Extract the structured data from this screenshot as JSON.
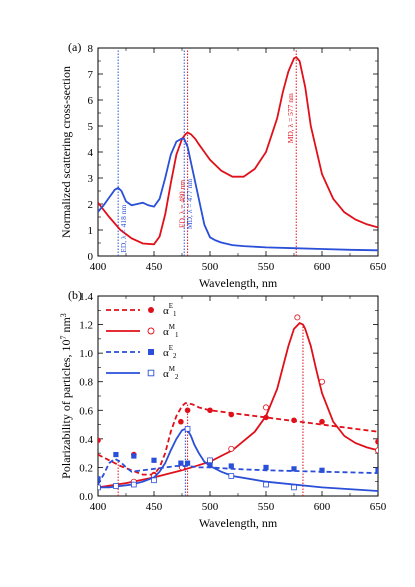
{
  "chart_data": [
    {
      "type": "line",
      "panel_label": "(a)",
      "xlabel": "Wavelength, nm",
      "ylabel": "Normalized scattering cross-section",
      "xlim": [
        400,
        650
      ],
      "ylim": [
        0,
        8
      ],
      "xticks": [
        400,
        450,
        500,
        550,
        600,
        650
      ],
      "yticks": [
        0,
        1,
        2,
        3,
        4,
        5,
        6,
        7,
        8
      ],
      "grid": false,
      "series": [
        {
          "color": "#e0101a",
          "style": "solid",
          "x": [
            400,
            410,
            420,
            430,
            440,
            450,
            455,
            460,
            465,
            470,
            475,
            478,
            480,
            483,
            487,
            490,
            495,
            500,
            510,
            520,
            530,
            540,
            550,
            560,
            565,
            570,
            575,
            577,
            580,
            585,
            590,
            600,
            610,
            620,
            630,
            640,
            650
          ],
          "y": [
            2.05,
            1.5,
            1.0,
            0.68,
            0.48,
            0.45,
            0.75,
            1.6,
            2.8,
            3.9,
            4.5,
            4.68,
            4.75,
            4.68,
            4.5,
            4.3,
            4.0,
            3.7,
            3.28,
            3.05,
            3.05,
            3.35,
            4.0,
            5.3,
            6.3,
            7.1,
            7.6,
            7.65,
            7.5,
            6.5,
            5.0,
            3.15,
            2.2,
            1.68,
            1.4,
            1.22,
            1.1
          ]
        },
        {
          "color": "#2a4fd8",
          "style": "solid",
          "x": [
            400,
            405,
            410,
            415,
            418,
            421,
            425,
            430,
            435,
            440,
            445,
            450,
            455,
            460,
            465,
            470,
            475,
            477,
            480,
            485,
            490,
            495,
            500,
            505,
            510,
            520,
            530,
            550,
            575,
            600,
            625,
            650
          ],
          "y": [
            1.7,
            1.95,
            2.25,
            2.55,
            2.62,
            2.5,
            2.1,
            1.95,
            2.0,
            2.05,
            1.95,
            1.9,
            2.2,
            3.0,
            3.9,
            4.4,
            4.52,
            4.5,
            4.2,
            3.2,
            2.2,
            1.2,
            0.72,
            0.6,
            0.52,
            0.42,
            0.38,
            0.33,
            0.3,
            0.27,
            0.24,
            0.22
          ]
        }
      ],
      "vlines": [
        {
          "x": 418,
          "color": "#2a4fd8",
          "label": "ED, λ = 418 nm"
        },
        {
          "x": 477,
          "color": "#2a4fd8",
          "label": "MD, λ = 477 nm"
        },
        {
          "x": 480,
          "color": "#e0101a",
          "label": "ED, λ = 480 nm"
        },
        {
          "x": 577,
          "color": "#e0101a",
          "label": "MD, λ = 577 nm"
        }
      ]
    },
    {
      "type": "line",
      "panel_label": "(b)",
      "xlabel": "Wavelength, nm",
      "ylabel": "Polarizability of particles, 10",
      "ylabel_sup": "7",
      "ylabel_unit": " nm",
      "ylabel_unit_sup": "3",
      "xlim": [
        400,
        650
      ],
      "ylim": [
        0,
        1.4
      ],
      "xticks": [
        400,
        450,
        500,
        550,
        600,
        650
      ],
      "yticks": [
        "0.0",
        "0.2",
        "0.4",
        "0.6",
        "0.8",
        "1.0",
        "1.2",
        "1.4"
      ],
      "grid": false,
      "legend_position": "top-left",
      "legend": [
        {
          "base": "α",
          "sup": "E",
          "sub": "1",
          "color": "#e0101a",
          "style": "dashed",
          "marker": "filled-circle"
        },
        {
          "base": "α",
          "sup": "M",
          "sub": "1",
          "color": "#e0101a",
          "style": "solid",
          "marker": "open-circle"
        },
        {
          "base": "α",
          "sup": "E",
          "sub": "2",
          "color": "#2a4fd8",
          "style": "dashed",
          "marker": "filled-square"
        },
        {
          "base": "α",
          "sup": "M",
          "sub": "2",
          "color": "#2a4fd8",
          "style": "solid",
          "marker": "open-square"
        }
      ],
      "series": [
        {
          "color": "#e0101a",
          "style": "dashed",
          "x": [
            400,
            410,
            420,
            430,
            440,
            450,
            455,
            460,
            465,
            470,
            475,
            478,
            480,
            485,
            490,
            500,
            510,
            520,
            530,
            540,
            550,
            560,
            570,
            580,
            590,
            600,
            610,
            620,
            630,
            640,
            650
          ],
          "y": [
            0.29,
            0.25,
            0.21,
            0.18,
            0.15,
            0.15,
            0.2,
            0.3,
            0.45,
            0.56,
            0.63,
            0.65,
            0.65,
            0.64,
            0.62,
            0.6,
            0.59,
            0.58,
            0.57,
            0.56,
            0.55,
            0.54,
            0.53,
            0.52,
            0.51,
            0.5,
            0.49,
            0.48,
            0.47,
            0.46,
            0.45
          ],
          "markers": {
            "type": "filled-circle",
            "x": [
              400,
              432,
              450,
              474,
              480,
              500,
              519,
              550,
              575,
              600,
              650
            ],
            "y": [
              0.39,
              0.29,
              0.15,
              0.52,
              0.6,
              0.6,
              0.57,
              0.55,
              0.53,
              0.52,
              0.38
            ]
          }
        },
        {
          "color": "#e0101a",
          "style": "solid",
          "x": [
            400,
            425,
            450,
            475,
            500,
            520,
            540,
            550,
            560,
            565,
            570,
            575,
            580,
            583,
            585,
            590,
            595,
            600,
            610,
            620,
            630,
            640,
            650
          ],
          "y": [
            0.06,
            0.09,
            0.13,
            0.18,
            0.24,
            0.32,
            0.45,
            0.56,
            0.75,
            0.9,
            1.05,
            1.17,
            1.21,
            1.2,
            1.17,
            1.05,
            0.88,
            0.72,
            0.52,
            0.42,
            0.37,
            0.34,
            0.32
          ],
          "markers": {
            "type": "open-circle",
            "x": [
              400,
              432,
              450,
              475,
              500,
              519,
              550,
              578,
              600,
              650
            ],
            "y": [
              0.06,
              0.1,
              0.14,
              0.2,
              0.24,
              0.33,
              0.62,
              1.25,
              0.8,
              0.32
            ]
          }
        },
        {
          "color": "#2a4fd8",
          "style": "dashed",
          "x": [
            400,
            405,
            410,
            415,
            420,
            425,
            430,
            440,
            450,
            460,
            470,
            480,
            490,
            500,
            520,
            550,
            575,
            600,
            625,
            650
          ],
          "y": [
            0.08,
            0.15,
            0.23,
            0.26,
            0.24,
            0.2,
            0.17,
            0.18,
            0.19,
            0.2,
            0.21,
            0.21,
            0.2,
            0.2,
            0.19,
            0.18,
            0.175,
            0.17,
            0.165,
            0.16
          ],
          "markers": {
            "type": "filled-square",
            "x": [
              400,
              416,
              432,
              450,
              474,
              480,
              500,
              519,
              550,
              575,
              600,
              650
            ],
            "y": [
              0.12,
              0.29,
              0.28,
              0.25,
              0.23,
              0.23,
              0.22,
              0.21,
              0.2,
              0.19,
              0.18,
              0.18
            ]
          }
        },
        {
          "color": "#2a4fd8",
          "style": "solid",
          "x": [
            400,
            410,
            420,
            430,
            440,
            450,
            455,
            460,
            465,
            470,
            475,
            478,
            480,
            483,
            486,
            490,
            495,
            500,
            510,
            520,
            550,
            600,
            650
          ],
          "y": [
            0.06,
            0.06,
            0.07,
            0.08,
            0.1,
            0.13,
            0.17,
            0.23,
            0.32,
            0.4,
            0.46,
            0.47,
            0.46,
            0.42,
            0.36,
            0.3,
            0.24,
            0.21,
            0.17,
            0.14,
            0.1,
            0.06,
            0.035
          ],
          "markers": {
            "type": "open-square",
            "x": [
              400,
              416,
              432,
              450,
              480,
              500,
              519,
              550,
              575
            ],
            "y": [
              0.06,
              0.07,
              0.08,
              0.11,
              0.47,
              0.25,
              0.14,
              0.08,
              0.06
            ]
          }
        }
      ],
      "vlines": [
        {
          "x": 418,
          "color": "#e0101a",
          "y_top": 0.25
        },
        {
          "x": 478,
          "color": "#2a4fd8",
          "y_top": 0.47
        },
        {
          "x": 480,
          "color": "#e0101a",
          "y_top": 0.65
        },
        {
          "x": 583,
          "color": "#e0101a",
          "y_top": 1.2
        }
      ]
    }
  ]
}
